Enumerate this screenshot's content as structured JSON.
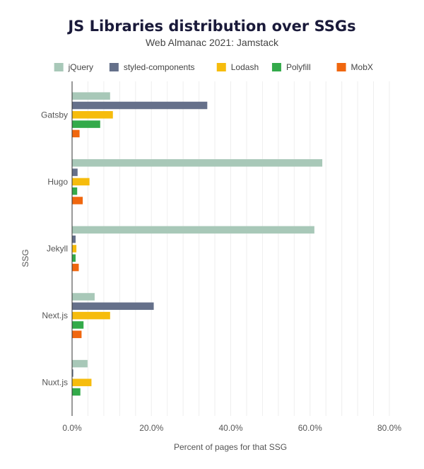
{
  "chart_data": {
    "type": "bar",
    "orientation": "horizontal",
    "title": "JS Libraries distribution over SSGs",
    "subtitle": "Web Almanac 2021: Jamstack",
    "xlabel": "Percent of pages for that SSG",
    "ylabel": "SSG",
    "xlim": [
      0,
      80
    ],
    "xticks": [
      "0.0%",
      "20.0%",
      "40.0%",
      "60.0%",
      "80.0%"
    ],
    "grid": true,
    "legend_position": "top",
    "categories": [
      "Gatsby",
      "Hugo",
      "Jekyll",
      "Next.js",
      "Nuxt.js"
    ],
    "series": [
      {
        "name": "jQuery",
        "color": "#a8c8b8",
        "values": [
          9.5,
          63.0,
          61.0,
          5.6,
          3.8
        ]
      },
      {
        "name": "styled-components",
        "color": "#65708a",
        "values": [
          34.0,
          1.3,
          0.8,
          20.5,
          0.2
        ]
      },
      {
        "name": "Lodash",
        "color": "#f6bc0d",
        "values": [
          10.2,
          4.3,
          1.0,
          9.5,
          4.8
        ]
      },
      {
        "name": "Polyfill",
        "color": "#33aa4a",
        "values": [
          7.0,
          1.2,
          0.8,
          2.8,
          2.0
        ]
      },
      {
        "name": "MobX",
        "color": "#f0670f",
        "values": [
          1.8,
          2.6,
          1.6,
          2.3,
          0.0
        ]
      }
    ]
  }
}
